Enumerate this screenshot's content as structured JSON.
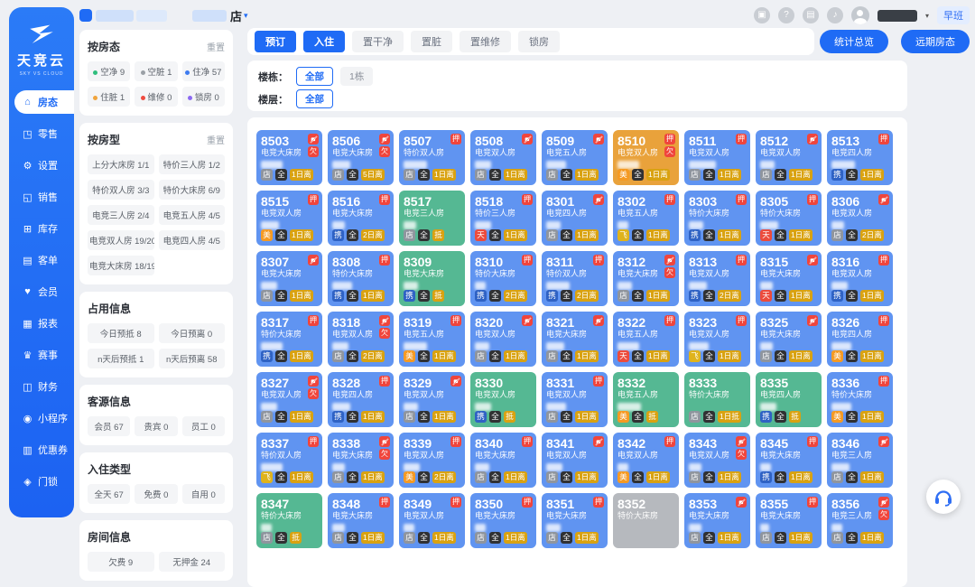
{
  "app": {
    "logo_title": "天竞云",
    "logo_subtitle": "SKY VS CLOUD"
  },
  "header": {
    "store_suffix": "店",
    "caret": "▾",
    "shift_badge": "早班",
    "icons": [
      {
        "name": "notification-icon",
        "glyph": "▣"
      },
      {
        "name": "help-icon",
        "glyph": "?"
      },
      {
        "name": "orders-icon",
        "glyph": "▤"
      },
      {
        "name": "music-icon",
        "glyph": "♪"
      }
    ]
  },
  "sidebar": {
    "items": [
      {
        "key": "room-status",
        "label": "房态",
        "glyph": "⌂",
        "active": true
      },
      {
        "key": "retail",
        "label": "零售",
        "glyph": "◳",
        "active": false
      },
      {
        "key": "settings",
        "label": "设置",
        "glyph": "⚙",
        "active": false
      },
      {
        "key": "sales",
        "label": "销售",
        "glyph": "◱",
        "active": false
      },
      {
        "key": "inventory",
        "label": "库存",
        "glyph": "⊞",
        "active": false
      },
      {
        "key": "guest-orders",
        "label": "客单",
        "glyph": "▤",
        "active": false
      },
      {
        "key": "members",
        "label": "会员",
        "glyph": "♥",
        "active": false
      },
      {
        "key": "reports",
        "label": "报表",
        "glyph": "▦",
        "active": false
      },
      {
        "key": "events",
        "label": "赛事",
        "glyph": "♛",
        "active": false
      },
      {
        "key": "finance",
        "label": "财务",
        "glyph": "◫",
        "active": false
      },
      {
        "key": "mini-program",
        "label": "小程序",
        "glyph": "◉",
        "active": false
      },
      {
        "key": "coupons",
        "label": "优惠券",
        "glyph": "▥",
        "active": false
      },
      {
        "key": "door-lock",
        "label": "门锁",
        "glyph": "◈",
        "active": false
      }
    ]
  },
  "filters": {
    "room_status": {
      "title": "按房态",
      "reset": "重置",
      "items": [
        {
          "label": "空净",
          "count": 9,
          "color": "#2fbe7d"
        },
        {
          "label": "空脏",
          "count": 1,
          "color": "#9aa0a6"
        },
        {
          "label": "住净",
          "count": 57,
          "color": "#3e7bf0"
        },
        {
          "label": "住脏",
          "count": 1,
          "color": "#f0a43c"
        },
        {
          "label": "维修",
          "count": 0,
          "color": "#ef4b3f"
        },
        {
          "label": "锁房",
          "count": 0,
          "color": "#8b69f2"
        }
      ]
    },
    "room_type": {
      "title": "按房型",
      "reset": "重置",
      "items": [
        {
          "label": "上分大床房",
          "count": "1/1"
        },
        {
          "label": "特价三人房",
          "count": "1/2"
        },
        {
          "label": "特价双人房",
          "count": "3/3"
        },
        {
          "label": "特价大床房",
          "count": "6/9"
        },
        {
          "label": "电竞三人房",
          "count": "2/4"
        },
        {
          "label": "电竞五人房",
          "count": "4/5"
        },
        {
          "label": "电竞双人房",
          "count": "19/20"
        },
        {
          "label": "电竞四人房",
          "count": "4/5"
        },
        {
          "label": "电竞大床房",
          "count": "18/19"
        }
      ]
    },
    "occupancy": {
      "title": "占用信息",
      "items": [
        {
          "label": "今日预抵",
          "count": 8
        },
        {
          "label": "今日预离",
          "count": 0
        },
        {
          "label": "n天后预抵",
          "count": 1
        },
        {
          "label": "n天后预离",
          "count": 58
        }
      ]
    },
    "guest_source": {
      "title": "客源信息",
      "items": [
        {
          "label": "会员",
          "count": 67
        },
        {
          "label": "贵宾",
          "count": 0
        },
        {
          "label": "员工",
          "count": 0
        }
      ]
    },
    "checkin_type": {
      "title": "入住类型",
      "items": [
        {
          "label": "全天",
          "count": 67
        },
        {
          "label": "免费",
          "count": 0
        },
        {
          "label": "自用",
          "count": 0
        }
      ]
    },
    "room_info": {
      "title": "房间信息",
      "items": [
        {
          "label": "欠费",
          "count": 9
        },
        {
          "label": "无押金",
          "count": 24
        }
      ]
    }
  },
  "toolbar": {
    "primary": [
      "预订",
      "入住"
    ],
    "secondary": [
      "置干净",
      "置脏",
      "置维修",
      "锁房"
    ],
    "overview_btn": "统计总览",
    "future_btn": "远期房态"
  },
  "building_filter": {
    "label": "楼栋：",
    "options": [
      {
        "label": "全部",
        "selected": true
      },
      {
        "label": "1栋",
        "selected": false
      }
    ]
  },
  "floor_filter": {
    "label": "楼层：",
    "options": [
      {
        "label": "全部",
        "selected": true
      }
    ]
  },
  "colors": {
    "card": {
      "blue": "#6094f1",
      "green": "#55b893",
      "orange": "#e9a23b",
      "gray": "#b6b9be"
    },
    "channel": {
      "店": "#8f959e",
      "全": "#303133",
      "携": "#2f62c4",
      "美": "#f59a23",
      "天": "#ec4b3c",
      "飞": "#dfb31c"
    },
    "depart": "#d9a211",
    "alert": "#f0453c",
    "accent": "#1f6bf5"
  },
  "rooms": [
    {
      "n": "8503",
      "t": "电竞大床房",
      "s": "blue",
      "top": [
        "nd",
        "欠"
      ],
      "b": [
        "店",
        "全",
        "1日离"
      ],
      "g": 24
    },
    {
      "n": "8506",
      "t": "电竞大床房",
      "s": "blue",
      "top": [
        "nd",
        "欠"
      ],
      "b": [
        "店",
        "全",
        "5日离"
      ],
      "g": 20
    },
    {
      "n": "8507",
      "t": "特价双人房",
      "s": "blue",
      "top": [
        "押"
      ],
      "b": [
        "店",
        "全",
        "1日离"
      ],
      "g": 26
    },
    {
      "n": "8508",
      "t": "电竞双人房",
      "s": "blue",
      "top": [
        "nd"
      ],
      "b": [
        "店",
        "全",
        "1日离"
      ],
      "g": 18
    },
    {
      "n": "8509",
      "t": "电竞五人房",
      "s": "blue",
      "top": [
        "nd"
      ],
      "b": [
        "店",
        "全",
        "1日离"
      ],
      "g": 22
    },
    {
      "n": "8510",
      "t": "电竞双人房",
      "s": "orange",
      "top": [
        "押",
        "欠"
      ],
      "b": [
        "美",
        "全",
        "1日离"
      ],
      "g": 24
    },
    {
      "n": "8511",
      "t": "电竞双人房",
      "s": "blue",
      "top": [
        "押"
      ],
      "b": [
        "店",
        "全",
        "1日离"
      ],
      "g": 30
    },
    {
      "n": "8512",
      "t": "电竞双人房",
      "s": "blue",
      "top": [
        "nd"
      ],
      "b": [
        "店",
        "全",
        "1日离"
      ],
      "g": 16
    },
    {
      "n": "8513",
      "t": "电竞四人房",
      "s": "blue",
      "top": [
        "押"
      ],
      "b": [
        "携",
        "全",
        "1日离"
      ],
      "g": 26
    },
    {
      "n": "8515",
      "t": "电竞双人房",
      "s": "blue",
      "top": [
        "押"
      ],
      "b": [
        "美",
        "全",
        "1日离"
      ],
      "g": 20
    },
    {
      "n": "8516",
      "t": "电竞大床房",
      "s": "blue",
      "top": [
        "押"
      ],
      "b": [
        "携",
        "全",
        "2日离"
      ],
      "g": 14
    },
    {
      "n": "8517",
      "t": "电竞三人房",
      "s": "green",
      "top": [],
      "b": [
        "店",
        "全",
        "抵"
      ],
      "g": 14
    },
    {
      "n": "8518",
      "t": "特价三人房",
      "s": "blue",
      "top": [
        "押"
      ],
      "b": [
        "天",
        "全",
        "1日离"
      ],
      "g": 18
    },
    {
      "n": "8301",
      "t": "电竞四人房",
      "s": "blue",
      "top": [
        "nd"
      ],
      "b": [
        "店",
        "全",
        "1日离"
      ],
      "g": 16
    },
    {
      "n": "8302",
      "t": "电竞五人房",
      "s": "blue",
      "top": [
        "押"
      ],
      "b": [
        "飞",
        "全",
        "1日离"
      ],
      "g": 12
    },
    {
      "n": "8303",
      "t": "特价大床房",
      "s": "blue",
      "top": [
        "押"
      ],
      "b": [
        "携",
        "全",
        "1日离"
      ],
      "g": 16
    },
    {
      "n": "8305",
      "t": "特价大床房",
      "s": "blue",
      "top": [
        "押"
      ],
      "b": [
        "天",
        "全",
        "1日离"
      ],
      "g": 20
    },
    {
      "n": "8306",
      "t": "电竞双人房",
      "s": "blue",
      "top": [
        "nd"
      ],
      "b": [
        "店",
        "全",
        "2日离"
      ],
      "g": 14
    },
    {
      "n": "8307",
      "t": "电竞大床房",
      "s": "blue",
      "top": [
        "nd"
      ],
      "b": [
        "店",
        "全",
        "1日离"
      ],
      "g": 18
    },
    {
      "n": "8308",
      "t": "特价大床房",
      "s": "blue",
      "top": [
        "押"
      ],
      "b": [
        "携",
        "全",
        "1日离"
      ],
      "g": 22
    },
    {
      "n": "8309",
      "t": "电竞大床房",
      "s": "green",
      "top": [],
      "b": [
        "携",
        "全",
        "抵"
      ],
      "g": 16
    },
    {
      "n": "8310",
      "t": "特价大床房",
      "s": "blue",
      "top": [
        "押"
      ],
      "b": [
        "携",
        "全",
        "2日离"
      ],
      "g": 12
    },
    {
      "n": "8311",
      "t": "特价双人房",
      "s": "blue",
      "top": [
        "押"
      ],
      "b": [
        "携",
        "全",
        "2日离"
      ],
      "g": 26
    },
    {
      "n": "8312",
      "t": "电竞大床房",
      "s": "blue",
      "top": [
        "nd",
        "欠"
      ],
      "b": [
        "店",
        "全",
        "1日离"
      ],
      "g": 16
    },
    {
      "n": "8313",
      "t": "电竞双人房",
      "s": "blue",
      "top": [
        "押"
      ],
      "b": [
        "携",
        "全",
        "2日离"
      ],
      "g": 20
    },
    {
      "n": "8315",
      "t": "电竞大床房",
      "s": "blue",
      "top": [
        "nd"
      ],
      "b": [
        "天",
        "全",
        "1日离"
      ],
      "g": 14
    },
    {
      "n": "8316",
      "t": "电竞双人房",
      "s": "blue",
      "top": [
        "押"
      ],
      "b": [
        "携",
        "全",
        "1日离"
      ],
      "g": 18
    },
    {
      "n": "8317",
      "t": "特价大床房",
      "s": "blue",
      "top": [
        "押"
      ],
      "b": [
        "携",
        "全",
        "1日离"
      ],
      "g": 24
    },
    {
      "n": "8318",
      "t": "电竞双人房",
      "s": "blue",
      "top": [
        "nd",
        "欠"
      ],
      "b": [
        "店",
        "全",
        "2日离"
      ],
      "g": 18
    },
    {
      "n": "8319",
      "t": "电竞五人房",
      "s": "blue",
      "top": [
        "押"
      ],
      "b": [
        "美",
        "全",
        "1日离"
      ],
      "g": 26
    },
    {
      "n": "8320",
      "t": "电竞双人房",
      "s": "blue",
      "top": [
        "nd"
      ],
      "b": [
        "店",
        "全",
        "1日离"
      ],
      "g": 16
    },
    {
      "n": "8321",
      "t": "电竞大床房",
      "s": "blue",
      "top": [
        "nd"
      ],
      "b": [
        "店",
        "全",
        "1日离"
      ],
      "g": 20
    },
    {
      "n": "8322",
      "t": "电竞五人房",
      "s": "blue",
      "top": [
        "押"
      ],
      "b": [
        "天",
        "全",
        "1日离"
      ],
      "g": 24
    },
    {
      "n": "8323",
      "t": "电竞双人房",
      "s": "blue",
      "top": [
        "押"
      ],
      "b": [
        "飞",
        "全",
        "1日离"
      ],
      "g": 22
    },
    {
      "n": "8325",
      "t": "电竞大床房",
      "s": "blue",
      "top": [
        "nd"
      ],
      "b": [
        "店",
        "全",
        "1日离"
      ],
      "g": 14
    },
    {
      "n": "8326",
      "t": "电竞四人房",
      "s": "blue",
      "top": [
        "押"
      ],
      "b": [
        "美",
        "全",
        "1日离"
      ],
      "g": 22
    },
    {
      "n": "8327",
      "t": "电竞双人房",
      "s": "blue",
      "top": [
        "nd",
        "欠"
      ],
      "b": [
        "店",
        "全",
        "1日离"
      ],
      "g": 18
    },
    {
      "n": "8328",
      "t": "电竞四人房",
      "s": "blue",
      "top": [
        "押"
      ],
      "b": [
        "携",
        "全",
        "1日离"
      ],
      "g": 20
    },
    {
      "n": "8329",
      "t": "电竞双人房",
      "s": "blue",
      "top": [
        "nd"
      ],
      "b": [
        "店",
        "全",
        "1日离"
      ],
      "g": 16
    },
    {
      "n": "8330",
      "t": "电竞双人房",
      "s": "green",
      "top": [],
      "b": [
        "携",
        "全",
        "抵"
      ],
      "g": 18
    },
    {
      "n": "8331",
      "t": "电竞双人房",
      "s": "blue",
      "top": [
        "押"
      ],
      "b": [
        "店",
        "全",
        "1日离"
      ],
      "g": 22
    },
    {
      "n": "8332",
      "t": "电竞五人房",
      "s": "green",
      "top": [],
      "b": [
        "美",
        "全",
        "抵"
      ],
      "g": 26
    },
    {
      "n": "8333",
      "t": "特价大床房",
      "s": "green",
      "top": [],
      "b": [
        "店",
        "全",
        "1日抵"
      ],
      "g": 0
    },
    {
      "n": "8335",
      "t": "电竞四人房",
      "s": "green",
      "top": [],
      "b": [
        "携",
        "全",
        "抵"
      ],
      "g": 18
    },
    {
      "n": "8336",
      "t": "特价大床房",
      "s": "blue",
      "top": [
        "押"
      ],
      "b": [
        "美",
        "全",
        "1日离"
      ],
      "g": 22
    },
    {
      "n": "8337",
      "t": "特价双人房",
      "s": "blue",
      "top": [
        "押"
      ],
      "b": [
        "飞",
        "全",
        "1日离"
      ],
      "g": 24
    },
    {
      "n": "8338",
      "t": "电竞大床房",
      "s": "blue",
      "top": [
        "nd",
        "欠"
      ],
      "b": [
        "店",
        "全",
        "1日离"
      ],
      "g": 14
    },
    {
      "n": "8339",
      "t": "电竞双人房",
      "s": "blue",
      "top": [
        "押"
      ],
      "b": [
        "美",
        "全",
        "2日离"
      ],
      "g": 18
    },
    {
      "n": "8340",
      "t": "电竞大床房",
      "s": "blue",
      "top": [
        "押"
      ],
      "b": [
        "店",
        "全",
        "1日离"
      ],
      "g": 16
    },
    {
      "n": "8341",
      "t": "电竞双人房",
      "s": "blue",
      "top": [
        "nd"
      ],
      "b": [
        "店",
        "全",
        "1日离"
      ],
      "g": 18
    },
    {
      "n": "8342",
      "t": "电竞双人房",
      "s": "blue",
      "top": [
        "押"
      ],
      "b": [
        "美",
        "全",
        "1日离"
      ],
      "g": 12
    },
    {
      "n": "8343",
      "t": "电竞双人房",
      "s": "blue",
      "top": [
        "nd",
        "欠"
      ],
      "b": [
        "店",
        "全",
        "1日离"
      ],
      "g": 14
    },
    {
      "n": "8345",
      "t": "电竞大床房",
      "s": "blue",
      "top": [
        "押"
      ],
      "b": [
        "携",
        "全",
        "1日离"
      ],
      "g": 12
    },
    {
      "n": "8346",
      "t": "电竞三人房",
      "s": "blue",
      "top": [
        "nd"
      ],
      "b": [
        "店",
        "全",
        "1日离"
      ],
      "g": 20
    },
    {
      "n": "8347",
      "t": "特价大床房",
      "s": "green",
      "top": [],
      "b": [
        "店",
        "全",
        "抵"
      ],
      "g": 12
    },
    {
      "n": "8348",
      "t": "电竞大床房",
      "s": "blue",
      "top": [
        "押"
      ],
      "b": [
        "店",
        "全",
        "1日离"
      ],
      "g": 14
    },
    {
      "n": "8349",
      "t": "电竞双人房",
      "s": "blue",
      "top": [
        "押"
      ],
      "b": [
        "店",
        "全",
        "1日离"
      ],
      "g": 12
    },
    {
      "n": "8350",
      "t": "电竞大床房",
      "s": "blue",
      "top": [
        "押"
      ],
      "b": [
        "店",
        "全",
        "1日离"
      ],
      "g": 12
    },
    {
      "n": "8351",
      "t": "电竞大床房",
      "s": "blue",
      "top": [
        "押"
      ],
      "b": [
        "店",
        "全",
        "1日离"
      ],
      "g": 16
    },
    {
      "n": "8352",
      "t": "特价大床房",
      "s": "gray",
      "top": [],
      "b": [],
      "g": 0
    },
    {
      "n": "8353",
      "t": "电竞大床房",
      "s": "blue",
      "top": [
        "nd"
      ],
      "b": [
        "店",
        "全",
        "1日离"
      ],
      "g": 14
    },
    {
      "n": "8355",
      "t": "电竞大床房",
      "s": "blue",
      "top": [
        "押"
      ],
      "b": [
        "店",
        "全",
        "1日离"
      ],
      "g": 10
    },
    {
      "n": "8356",
      "t": "电竞三人房",
      "s": "blue",
      "top": [
        "nd",
        "欠"
      ],
      "b": [
        "店",
        "全",
        "1日离"
      ],
      "g": 12
    }
  ]
}
